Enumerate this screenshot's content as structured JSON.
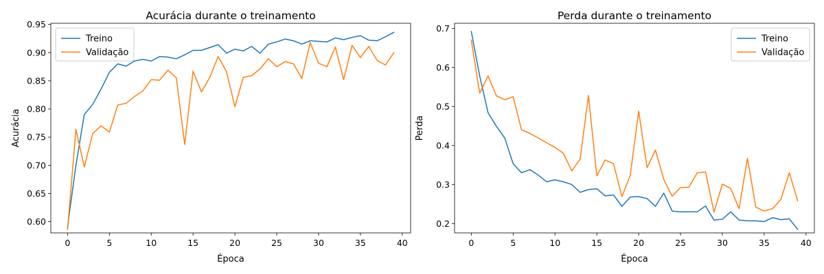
{
  "chart_data": [
    {
      "type": "line",
      "title": "Acurácia durante o treinamento",
      "xlabel": "Época",
      "ylabel": "Acurácia",
      "xlim": [
        -2,
        41
      ],
      "ylim": [
        0.58,
        0.952
      ],
      "xticks": [
        0,
        5,
        10,
        15,
        20,
        25,
        30,
        35,
        40
      ],
      "yticks": [
        0.6,
        0.65,
        0.7,
        0.75,
        0.8,
        0.85,
        0.9,
        0.95
      ],
      "ytick_labels": [
        "0.60",
        "0.65",
        "0.70",
        "0.75",
        "0.80",
        "0.85",
        "0.90",
        "0.95"
      ],
      "grid": false,
      "legend_position": "top-left",
      "x": [
        0,
        1,
        2,
        3,
        4,
        5,
        6,
        7,
        8,
        9,
        10,
        11,
        12,
        13,
        14,
        15,
        16,
        17,
        18,
        19,
        20,
        21,
        22,
        23,
        24,
        25,
        26,
        27,
        28,
        29,
        30,
        31,
        32,
        33,
        34,
        35,
        36,
        37,
        38,
        39
      ],
      "series": [
        {
          "name": "Treino",
          "color": "#1f77b4",
          "values": [
            0.591,
            0.7,
            0.79,
            0.808,
            0.835,
            0.865,
            0.88,
            0.876,
            0.885,
            0.888,
            0.885,
            0.893,
            0.892,
            0.889,
            0.896,
            0.904,
            0.904,
            0.909,
            0.914,
            0.899,
            0.906,
            0.903,
            0.911,
            0.899,
            0.915,
            0.919,
            0.924,
            0.921,
            0.915,
            0.921,
            0.92,
            0.919,
            0.926,
            0.923,
            0.927,
            0.93,
            0.922,
            0.921,
            0.928,
            0.936
          ]
        },
        {
          "name": "Validação",
          "color": "#ff7f0e",
          "values": [
            0.586,
            0.764,
            0.697,
            0.756,
            0.77,
            0.759,
            0.807,
            0.81,
            0.822,
            0.832,
            0.852,
            0.851,
            0.869,
            0.855,
            0.737,
            0.867,
            0.83,
            0.856,
            0.893,
            0.866,
            0.804,
            0.856,
            0.859,
            0.871,
            0.889,
            0.875,
            0.884,
            0.88,
            0.854,
            0.918,
            0.881,
            0.875,
            0.91,
            0.852,
            0.913,
            0.891,
            0.911,
            0.886,
            0.878,
            0.9
          ]
        }
      ]
    },
    {
      "type": "line",
      "title": "Perda durante o treinamento",
      "xlabel": "Época",
      "ylabel": "Perda",
      "xlim": [
        -2,
        41
      ],
      "ylim": [
        0.176,
        0.713
      ],
      "xticks": [
        0,
        5,
        10,
        15,
        20,
        25,
        30,
        35,
        40
      ],
      "yticks": [
        0.2,
        0.3,
        0.4,
        0.5,
        0.6,
        0.7
      ],
      "ytick_labels": [
        "0.2",
        "0.3",
        "0.4",
        "0.5",
        "0.6",
        "0.7"
      ],
      "grid": false,
      "legend_position": "top-right",
      "x": [
        0,
        1,
        2,
        3,
        4,
        5,
        6,
        7,
        8,
        9,
        10,
        11,
        12,
        13,
        14,
        15,
        16,
        17,
        18,
        19,
        20,
        21,
        22,
        23,
        24,
        25,
        26,
        27,
        28,
        29,
        30,
        31,
        32,
        33,
        34,
        35,
        36,
        37,
        38,
        39
      ],
      "series": [
        {
          "name": "Treino",
          "color": "#1f77b4",
          "values": [
            0.692,
            0.578,
            0.484,
            0.449,
            0.419,
            0.353,
            0.33,
            0.338,
            0.324,
            0.307,
            0.312,
            0.307,
            0.3,
            0.28,
            0.287,
            0.289,
            0.271,
            0.273,
            0.244,
            0.268,
            0.269,
            0.264,
            0.244,
            0.278,
            0.232,
            0.23,
            0.23,
            0.23,
            0.245,
            0.209,
            0.211,
            0.23,
            0.209,
            0.207,
            0.207,
            0.205,
            0.215,
            0.21,
            0.212,
            0.185
          ]
        },
        {
          "name": "Validação",
          "color": "#ff7f0e",
          "values": [
            0.67,
            0.534,
            0.578,
            0.527,
            0.517,
            0.525,
            0.44,
            0.431,
            0.419,
            0.407,
            0.395,
            0.38,
            0.335,
            0.365,
            0.528,
            0.322,
            0.363,
            0.353,
            0.269,
            0.324,
            0.488,
            0.343,
            0.388,
            0.313,
            0.27,
            0.292,
            0.293,
            0.33,
            0.332,
            0.229,
            0.301,
            0.29,
            0.238,
            0.367,
            0.242,
            0.232,
            0.238,
            0.262,
            0.33,
            0.258
          ]
        }
      ]
    }
  ]
}
